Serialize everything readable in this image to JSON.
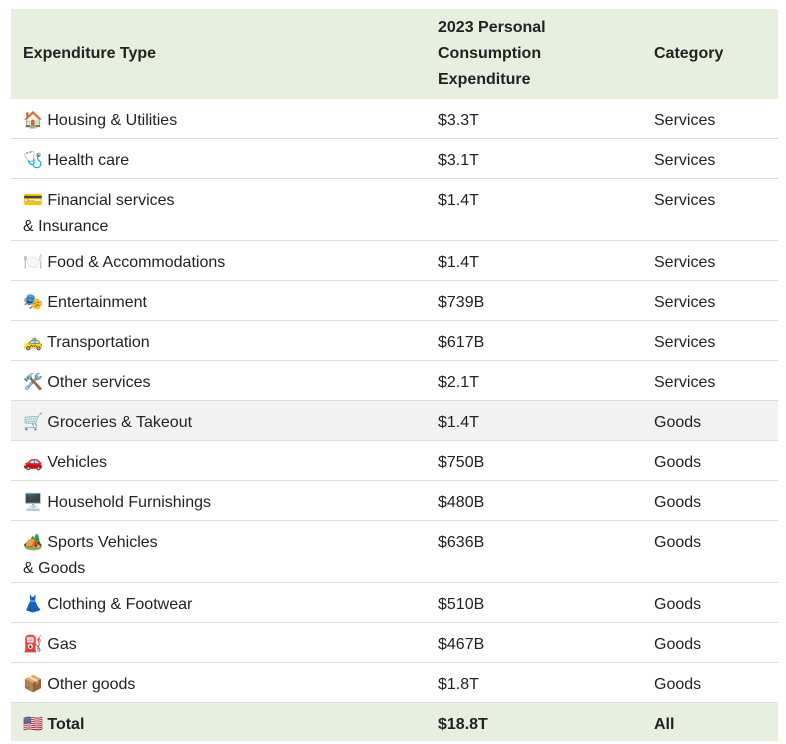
{
  "table": {
    "header": [
      "Expenditure Type",
      "2023 Personal\nConsumption\nExpenditure",
      "Category"
    ],
    "rows": [
      [
        "🏠 Housing & Utilities",
        "$3.3T",
        "Services"
      ],
      [
        "🩺 Health care",
        "$3.1T",
        "Services"
      ],
      [
        "💳 Financial services\n& Insurance",
        "$1.4T",
        "Services"
      ],
      [
        "🍽️ Food & Accommodations",
        "$1.4T",
        "Services"
      ],
      [
        "🎭 Entertainment",
        "$739B",
        "Services"
      ],
      [
        "🚕 Transportation",
        "$617B",
        "Services"
      ],
      [
        "🛠️ Other services",
        "$2.1T",
        "Services"
      ],
      [
        "🛒 Groceries & Takeout",
        "$1.4T",
        "Goods"
      ],
      [
        "🚗 Vehicles",
        "$750B",
        "Goods"
      ],
      [
        "🖥️ Household Furnishings",
        "$480B",
        "Goods"
      ],
      [
        "🏕️ Sports Vehicles\n& Goods",
        "$636B",
        "Goods"
      ],
      [
        "👗 Clothing & Footwear",
        "$510B",
        "Goods"
      ],
      [
        "⛽ Gas",
        "$467B",
        "Goods"
      ],
      [
        "📦 Other goods",
        "$1.8T",
        "Goods"
      ]
    ],
    "total": [
      "🇺🇸 Total",
      "$18.8T",
      "All"
    ]
  }
}
